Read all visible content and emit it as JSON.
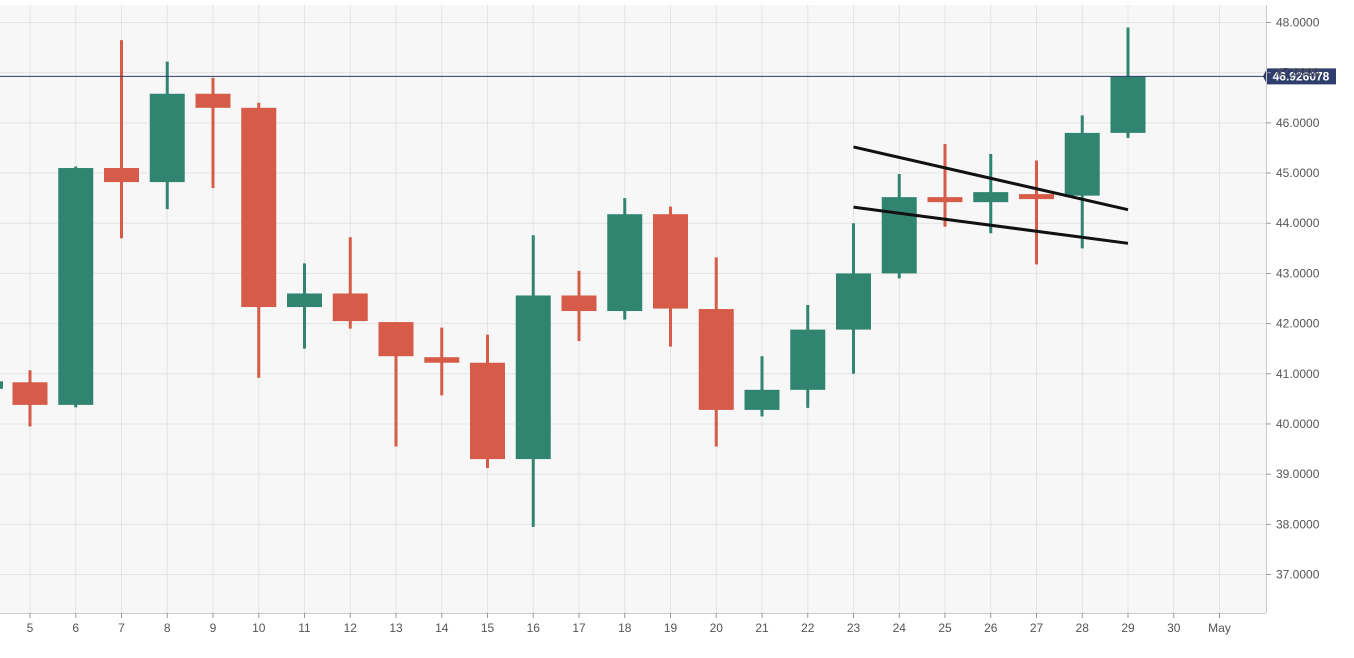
{
  "colors": {
    "plot_background": "#f7f7f7",
    "grid": "#e4e4e4",
    "axis_text": "#555555",
    "bullish": "#318570",
    "bearish": "#d65b48",
    "price_line": "#2e3d6b",
    "price_label_bg": "#2e3d6b",
    "price_label_text": "#ffffff",
    "trendline": "#111111"
  },
  "chart_data": {
    "type": "candlestick",
    "x_ticks": [
      "5",
      "6",
      "7",
      "8",
      "9",
      "10",
      "11",
      "12",
      "13",
      "14",
      "15",
      "16",
      "17",
      "18",
      "19",
      "20",
      "21",
      "22",
      "23",
      "24",
      "25",
      "26",
      "27",
      "28",
      "29",
      "30",
      "May"
    ],
    "y_ticks": [
      "37.0000",
      "38.0000",
      "39.0000",
      "40.0000",
      "41.0000",
      "42.0000",
      "43.0000",
      "44.0000",
      "45.0000",
      "46.0000",
      "47.0000",
      "48.0000"
    ],
    "ylim": [
      36.2,
      48.4
    ],
    "grid": true,
    "current_price": 46.926078,
    "current_price_label": "46.926078",
    "candles": [
      {
        "x": "5",
        "open": 40.83,
        "high": 41.07,
        "low": 39.95,
        "close": 40.38
      },
      {
        "x": "6",
        "open": 40.38,
        "high": 45.13,
        "low": 40.33,
        "close": 45.1
      },
      {
        "x": "7",
        "open": 45.1,
        "high": 47.65,
        "low": 43.7,
        "close": 44.82
      },
      {
        "x": "8",
        "open": 44.82,
        "high": 47.22,
        "low": 44.28,
        "close": 46.58
      },
      {
        "x": "9",
        "open": 46.58,
        "high": 46.9,
        "low": 44.7,
        "close": 46.3
      },
      {
        "x": "10",
        "open": 46.3,
        "high": 46.4,
        "low": 40.92,
        "close": 42.33
      },
      {
        "x": "11",
        "open": 42.33,
        "high": 43.2,
        "low": 41.5,
        "close": 42.6
      },
      {
        "x": "12",
        "open": 42.6,
        "high": 43.72,
        "low": 41.9,
        "close": 42.05
      },
      {
        "x": "13",
        "open": 42.03,
        "high": 42.03,
        "low": 39.55,
        "close": 41.35
      },
      {
        "x": "14",
        "open": 41.33,
        "high": 41.92,
        "low": 40.57,
        "close": 41.22
      },
      {
        "x": "15",
        "open": 41.22,
        "high": 41.78,
        "low": 39.12,
        "close": 39.3
      },
      {
        "x": "16",
        "open": 39.3,
        "high": 43.76,
        "low": 37.95,
        "close": 42.56
      },
      {
        "x": "17",
        "open": 42.56,
        "high": 43.05,
        "low": 41.65,
        "close": 42.25
      },
      {
        "x": "18",
        "open": 42.25,
        "high": 44.5,
        "low": 42.08,
        "close": 44.18
      },
      {
        "x": "19",
        "open": 44.18,
        "high": 44.33,
        "low": 41.54,
        "close": 42.3
      },
      {
        "x": "20",
        "open": 42.29,
        "high": 43.32,
        "low": 39.55,
        "close": 40.28
      },
      {
        "x": "21",
        "open": 40.28,
        "high": 41.35,
        "low": 40.15,
        "close": 40.68
      },
      {
        "x": "22",
        "open": 40.68,
        "high": 42.37,
        "low": 40.32,
        "close": 41.88
      },
      {
        "x": "23",
        "open": 41.88,
        "high": 44.0,
        "low": 41.0,
        "close": 43.0
      },
      {
        "x": "24",
        "open": 43.0,
        "high": 44.98,
        "low": 42.9,
        "close": 44.52
      },
      {
        "x": "25",
        "open": 44.52,
        "high": 45.58,
        "low": 43.93,
        "close": 44.42
      },
      {
        "x": "26",
        "open": 44.42,
        "high": 45.38,
        "low": 43.8,
        "close": 44.62
      },
      {
        "x": "27",
        "open": 44.58,
        "high": 45.25,
        "low": 43.18,
        "close": 44.55
      },
      {
        "x": "28",
        "open": 44.55,
        "high": 46.15,
        "low": 43.5,
        "close": 45.8
      },
      {
        "x": "29",
        "open": 45.8,
        "high": 47.9,
        "low": 45.7,
        "close": 46.93
      }
    ],
    "partial_left_candle": {
      "open": 40.7,
      "close": 40.85
    },
    "trendlines": [
      {
        "x1": "23",
        "y1": 45.52,
        "x2": "29",
        "y2": 44.27
      },
      {
        "x1": "23",
        "y1": 44.32,
        "x2": "29",
        "y2": 43.6
      }
    ]
  }
}
